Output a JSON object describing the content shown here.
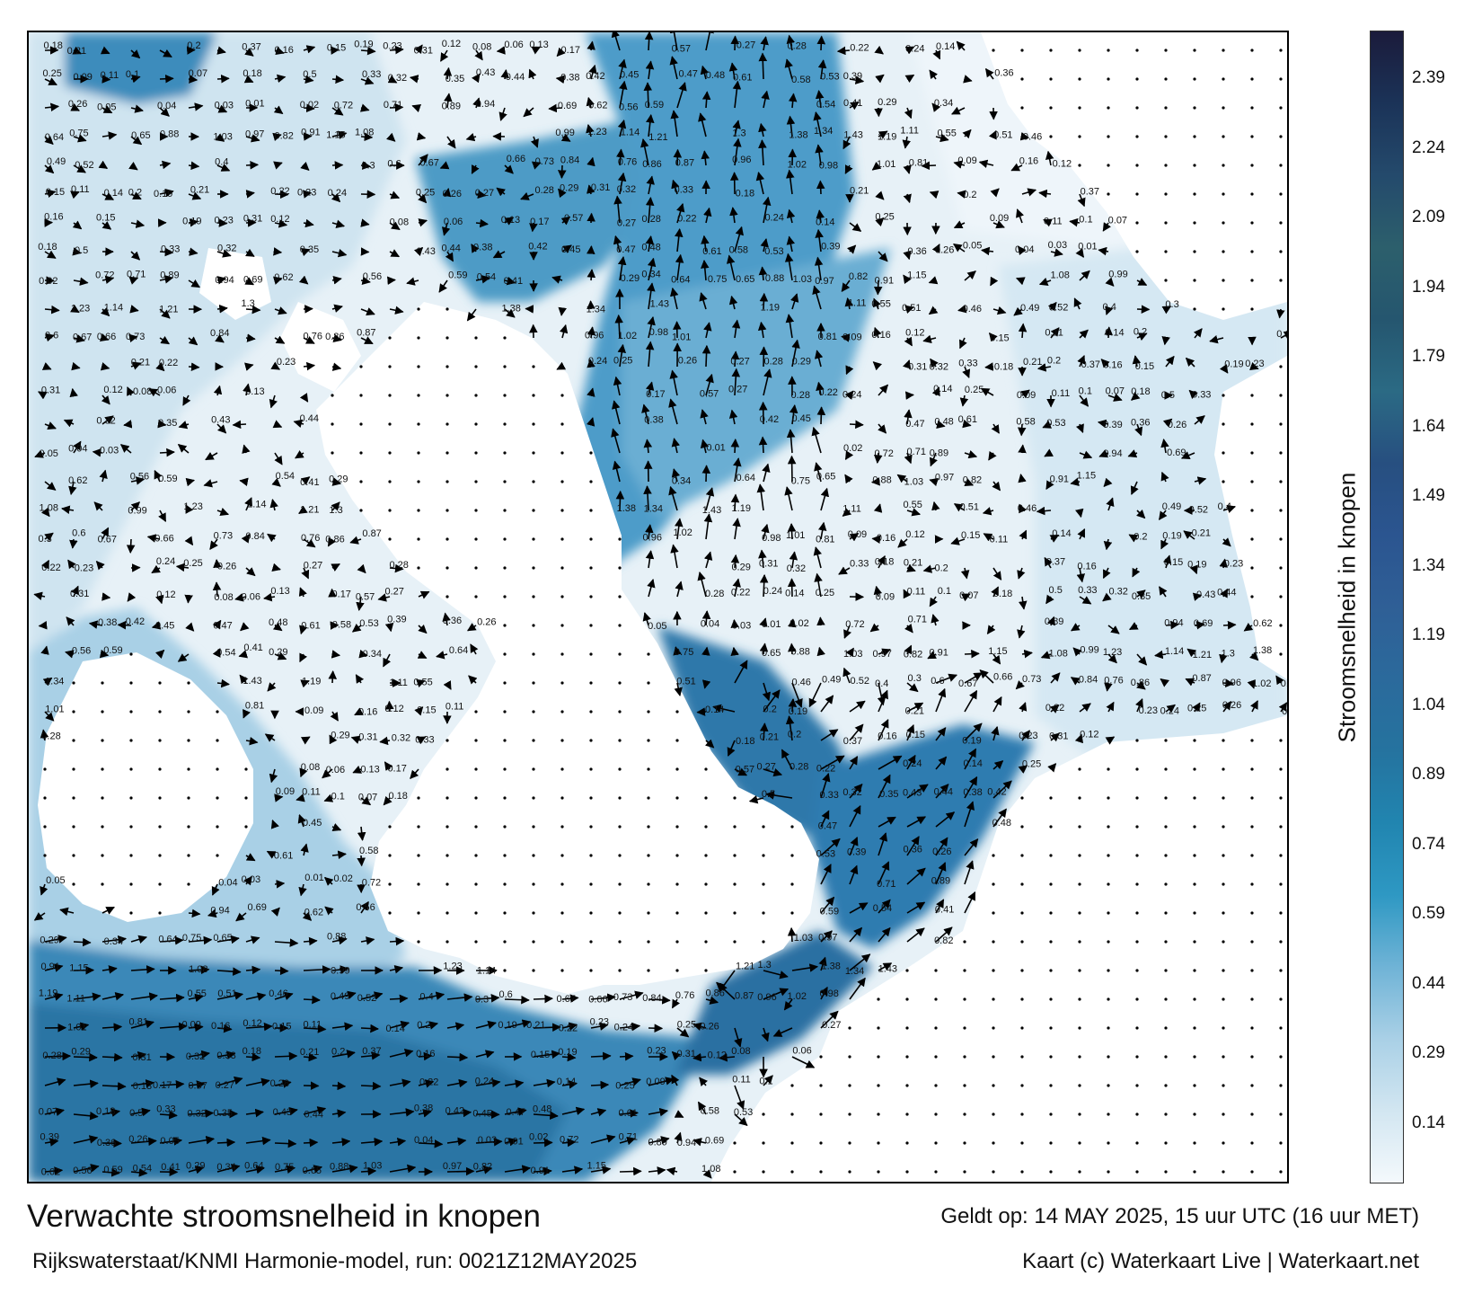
{
  "title": "Verwachte stroomsnelheid in knopen",
  "subtitle": "Rijkswaterstaat/KNMI Harmonie-model, run: 0021Z12MAY2025",
  "valid_time": "Geldt op: 14 MAY 2025, 15 uur UTC (16 uur MET)",
  "credit": "Kaart (c) Waterkaart Live | Waterkaart.net",
  "legend": {
    "title": "Stroomsnelheid in knopen",
    "ticks": [
      "2.39",
      "2.24",
      "2.09",
      "1.94",
      "1.79",
      "1.64",
      "1.49",
      "1.34",
      "1.19",
      "1.04",
      "0.89",
      "0.74",
      "0.59",
      "0.44",
      "0.29",
      "0.14"
    ],
    "colors": [
      "#f4f9fc",
      "#d2e6f1",
      "#a9d0e6",
      "#6fb3d6",
      "#2e98c3",
      "#2185b0",
      "#25739f",
      "#2b6a9c",
      "#2f5f96",
      "#2b5590",
      "#274f80",
      "#2b6a84",
      "#25566f",
      "#2c5f6c",
      "#244a6c",
      "#1b3358",
      "#1b1b3b"
    ]
  },
  "map": {
    "land_color": "#ffffff",
    "sea_light": "#dcebf4",
    "sea_mid": "#8ec3de",
    "sea_dark": "#2f7fae",
    "sea_darkest": "#1d5f8c",
    "arrow_color": "#000000",
    "labels": [
      "0.18",
      "0.21",
      "0.2",
      "0.37",
      "0.16",
      "0.15",
      "0.19",
      "0.23",
      "0.31",
      "0.12",
      "0.08",
      "0.06",
      "0.13",
      "0.17",
      "0.57",
      "0.27",
      "0.28",
      "0.22",
      "0.24",
      "0.14",
      "0.25",
      "0.09",
      "0.11",
      "0.1",
      "0.07",
      "0.18",
      "0.5",
      "0.33",
      "0.32",
      "0.35",
      "0.43",
      "0.44",
      "0.38",
      "0.42",
      "0.45",
      "0.47",
      "0.48",
      "0.61",
      "0.58",
      "0.53",
      "0.39",
      "0.36",
      "0.26",
      "0.05",
      "0.04",
      "0.03",
      "0.01",
      "0.02",
      "0.72",
      "0.71",
      "0.89",
      "0.94",
      "0.69",
      "0.62",
      "0.56",
      "0.59",
      "0.54",
      "0.41",
      "0.29",
      "0.34",
      "0.64",
      "0.75",
      "0.65",
      "0.88",
      "1.03",
      "0.97",
      "0.82",
      "0.91",
      "1.15",
      "1.08",
      "0.99",
      "1.23",
      "1.14",
      "1.21",
      "1.3",
      "1.38",
      "1.34",
      "1.43",
      "1.19",
      "1.11",
      "0.55",
      "0.51",
      "0.46",
      "0.49",
      "0.52",
      "0.4",
      "0.3",
      "0.6",
      "0.67",
      "0.66",
      "0.73",
      "0.84",
      "0.76",
      "0.86",
      "0.87",
      "0.96",
      "1.02",
      "0.98",
      "1.01",
      "0.81",
      "0.09",
      "0.16",
      "0.12",
      "0.15",
      "0.11",
      "0.14",
      "0.2",
      "0.19",
      "0.21",
      "0.22",
      "0.23",
      "0.24",
      "0.25",
      "0.26",
      "0.27",
      "0.28",
      "0.29",
      "0.31",
      "0.32",
      "0.33"
    ]
  }
}
